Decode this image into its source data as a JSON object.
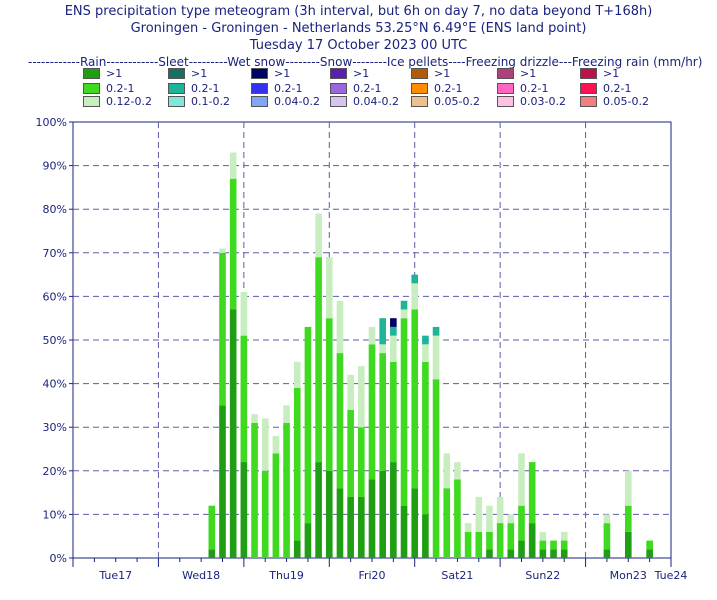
{
  "titles": {
    "line1": "ENS precipitation type meteogram (3h interval, but 6h on day 7, no data beyond T+168h)",
    "line2": "Groningen - Groningen - Netherlands 53.25°N 6.49°E (ENS land point)",
    "line3": "Tuesday 17 October 2023 00 UTC"
  },
  "legend_header": "------------Rain------------Sleet---------Wet snow--------Snow--------Ice pellets----Freezing drizzle---Freezing rain (mm/hr)",
  "legend": [
    {
      "name": "Rain",
      "items": [
        {
          "label": ">1",
          "color": "#1f9e13"
        },
        {
          "label": "0.2-1",
          "color": "#3fd91f"
        },
        {
          "label": "0.12-0.2",
          "color": "#c8eec0"
        }
      ]
    },
    {
      "name": "Sleet",
      "items": [
        {
          "label": ">1",
          "color": "#1a6e62"
        },
        {
          "label": "0.2-1",
          "color": "#1fb39a"
        },
        {
          "label": "0.1-0.2",
          "color": "#80e8d8"
        }
      ]
    },
    {
      "name": "Wet snow",
      "items": [
        {
          "label": ">1",
          "color": "#000066"
        },
        {
          "label": "0.2-1",
          "color": "#3333ee"
        },
        {
          "label": "0.04-0.2",
          "color": "#80a8f0"
        }
      ]
    },
    {
      "name": "Snow",
      "items": [
        {
          "label": ">1",
          "color": "#5a1fb0"
        },
        {
          "label": "0.2-1",
          "color": "#9966dd"
        },
        {
          "label": "0.04-0.2",
          "color": "#d4c4ee"
        }
      ]
    },
    {
      "name": "Ice pellets",
      "items": [
        {
          "label": ">1",
          "color": "#b05a0a"
        },
        {
          "label": "0.2-1",
          "color": "#ff8c00"
        },
        {
          "label": "0.05-0.2",
          "color": "#eec090"
        }
      ]
    },
    {
      "name": "Freezing drizzle",
      "items": [
        {
          "label": ">1",
          "color": "#b0407a"
        },
        {
          "label": "0.2-1",
          "color": "#ff66c0"
        },
        {
          "label": "0.03-0.2",
          "color": "#ffc0e4"
        }
      ]
    },
    {
      "name": "Freezing rain",
      "items": [
        {
          "label": ">1",
          "color": "#c0104a"
        },
        {
          "label": "0.2-1",
          "color": "#ff1050"
        },
        {
          "label": "0.05-0.2",
          "color": "#f08080"
        }
      ]
    }
  ],
  "colors": {
    "rain_heavy": "#1f9e13",
    "rain_mod": "#3fd91f",
    "rain_light": "#c8eec0",
    "sleet_heavy": "#1a6e62",
    "sleet_mod": "#1fb39a",
    "sleet_light": "#80e8d8",
    "wetsnow_heavy": "#000066",
    "grid": "#5c5ca8",
    "axis_text": "#1a237e",
    "weekend_label": "#ff0000"
  },
  "chart_data": {
    "type": "bar",
    "ylabel": "",
    "ylim": [
      0,
      100
    ],
    "y_unit": "%",
    "yticks": [
      "0%",
      "10%",
      "20%",
      "30%",
      "40%",
      "50%",
      "60%",
      "70%",
      "80%",
      "90%",
      "100%"
    ],
    "x_hours_range": [
      0,
      168
    ],
    "day_labels": [
      {
        "label": "Tue17",
        "weekend": false
      },
      {
        "label": "Wed18",
        "weekend": false
      },
      {
        "label": "Thu19",
        "weekend": false
      },
      {
        "label": "Fri20",
        "weekend": false
      },
      {
        "label": "Sat21",
        "weekend": false
      },
      {
        "label": "Sun22",
        "weekend": true
      },
      {
        "label": "Mon23",
        "weekend": false
      },
      {
        "label": "Tue24",
        "weekend": false
      }
    ],
    "series_order": [
      "rain_heavy",
      "rain_mod",
      "rain_light",
      "sleet_heavy",
      "sleet_mod",
      "wetsnow_heavy"
    ],
    "bars": [
      {
        "hour": 39,
        "rain_heavy": 2,
        "rain_mod": 10,
        "rain_light": 0
      },
      {
        "hour": 42,
        "rain_heavy": 35,
        "rain_mod": 35,
        "rain_light": 1
      },
      {
        "hour": 45,
        "rain_heavy": 57,
        "rain_mod": 30,
        "rain_light": 6
      },
      {
        "hour": 48,
        "rain_heavy": 22,
        "rain_mod": 29,
        "rain_light": 10
      },
      {
        "hour": 51,
        "rain_heavy": 0,
        "rain_mod": 31,
        "rain_light": 2
      },
      {
        "hour": 54,
        "rain_heavy": 0,
        "rain_mod": 20,
        "rain_light": 12
      },
      {
        "hour": 57,
        "rain_heavy": 0,
        "rain_mod": 24,
        "rain_light": 4
      },
      {
        "hour": 60,
        "rain_heavy": 0,
        "rain_mod": 31,
        "rain_light": 4
      },
      {
        "hour": 63,
        "rain_heavy": 4,
        "rain_mod": 35,
        "rain_light": 6
      },
      {
        "hour": 66,
        "rain_heavy": 8,
        "rain_mod": 45,
        "rain_light": 0
      },
      {
        "hour": 69,
        "rain_heavy": 22,
        "rain_mod": 47,
        "rain_light": 10
      },
      {
        "hour": 72,
        "rain_heavy": 20,
        "rain_mod": 35,
        "rain_light": 14
      },
      {
        "hour": 75,
        "rain_heavy": 16,
        "rain_mod": 31,
        "rain_light": 12
      },
      {
        "hour": 78,
        "rain_heavy": 14,
        "rain_mod": 20,
        "rain_light": 8
      },
      {
        "hour": 81,
        "rain_heavy": 14,
        "rain_mod": 16,
        "rain_light": 14
      },
      {
        "hour": 84,
        "rain_heavy": 18,
        "rain_mod": 31,
        "rain_light": 4
      },
      {
        "hour": 87,
        "rain_heavy": 20,
        "rain_mod": 27,
        "rain_light": 2,
        "sleet_mod": 6
      },
      {
        "hour": 90,
        "rain_heavy": 22,
        "rain_mod": 23,
        "rain_light": 6,
        "sleet_mod": 2,
        "wetsnow_heavy": 2
      },
      {
        "hour": 93,
        "rain_heavy": 12,
        "rain_mod": 43,
        "rain_light": 2,
        "sleet_mod": 2
      },
      {
        "hour": 96,
        "rain_heavy": 16,
        "rain_mod": 41,
        "rain_light": 6,
        "sleet_mod": 2
      },
      {
        "hour": 99,
        "rain_heavy": 10,
        "rain_mod": 35,
        "rain_light": 4,
        "sleet_mod": 2
      },
      {
        "hour": 102,
        "rain_heavy": 0,
        "rain_mod": 41,
        "rain_light": 10,
        "sleet_mod": 2
      },
      {
        "hour": 105,
        "rain_heavy": 0,
        "rain_mod": 16,
        "rain_light": 8
      },
      {
        "hour": 108,
        "rain_heavy": 0,
        "rain_mod": 18,
        "rain_light": 4
      },
      {
        "hour": 111,
        "rain_heavy": 0,
        "rain_mod": 6,
        "rain_light": 2
      },
      {
        "hour": 114,
        "rain_heavy": 0,
        "rain_mod": 6,
        "rain_light": 8
      },
      {
        "hour": 117,
        "rain_heavy": 2,
        "rain_mod": 4,
        "rain_light": 6
      },
      {
        "hour": 120,
        "rain_heavy": 0,
        "rain_mod": 8,
        "rain_light": 6
      },
      {
        "hour": 123,
        "rain_heavy": 2,
        "rain_mod": 6,
        "rain_light": 2
      },
      {
        "hour": 126,
        "rain_heavy": 4,
        "rain_mod": 8,
        "rain_light": 12
      },
      {
        "hour": 129,
        "rain_heavy": 8,
        "rain_mod": 14,
        "rain_light": 0
      },
      {
        "hour": 132,
        "rain_heavy": 2,
        "rain_mod": 2,
        "rain_light": 2
      },
      {
        "hour": 135,
        "rain_heavy": 2,
        "rain_mod": 2,
        "rain_light": 0
      },
      {
        "hour": 138,
        "rain_heavy": 2,
        "rain_mod": 2,
        "rain_light": 2
      },
      {
        "hour": 150,
        "rain_heavy": 2,
        "rain_mod": 6,
        "rain_light": 2
      },
      {
        "hour": 156,
        "rain_heavy": 6,
        "rain_mod": 6,
        "rain_light": 8
      },
      {
        "hour": 162,
        "rain_heavy": 2,
        "rain_mod": 2,
        "rain_light": 0
      }
    ]
  }
}
